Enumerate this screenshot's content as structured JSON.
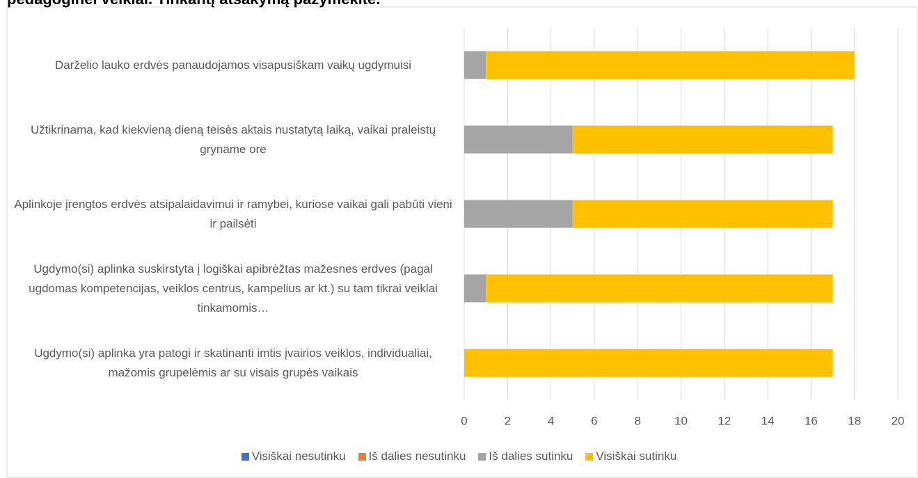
{
  "chart_data": {
    "type": "stacked_barh",
    "title": "pedagoginei veiklai. Tinkantį atsakymą pažymėkite.",
    "categories": [
      "Darželio lauko erdvės panaudojamos visapusiškam vaikų ugdymuisi",
      "Užtikrinama, kad kiekvieną dieną teisės aktais nustatytą laiką, vaikai praleistų gryname ore",
      "Aplinkoje įrengtos erdvės atsipalaidavimui ir ramybei, kuriose vaikai gali pabūti vieni ir pailsėti",
      "Ugdymo(si) aplinka suskirstyta į logiškai apibrėžtas mažesnes erdves (pagal ugdomas kompetencijas, veiklos centrus, kampelius ar kt.) su tam tikrai veiklai tinkamomis…",
      "Ugdymo(si) aplinka yra patogi ir skatinanti imtis įvairios veiklos, individualiai, mažomis grupelėmis ar su visais grupės vaikais"
    ],
    "series": [
      {
        "name": "Visiškai nesutinku",
        "color": "#4472c4",
        "values": [
          0,
          0,
          0,
          0,
          0
        ]
      },
      {
        "name": "Iš dalies nesutinku",
        "color": "#ed7d31",
        "values": [
          0,
          0,
          0,
          0,
          0
        ]
      },
      {
        "name": "Iš dalies sutinku",
        "color": "#a5a5a5",
        "values": [
          1,
          5,
          5,
          1,
          0
        ]
      },
      {
        "name": "Visiškai sutinku",
        "color": "#ffc000",
        "values": [
          17,
          12,
          12,
          16,
          17
        ]
      }
    ],
    "xlim": [
      0,
      20
    ],
    "xticks": [
      0,
      2,
      4,
      6,
      8,
      10,
      12,
      14,
      16,
      18,
      20
    ],
    "grid": true
  }
}
